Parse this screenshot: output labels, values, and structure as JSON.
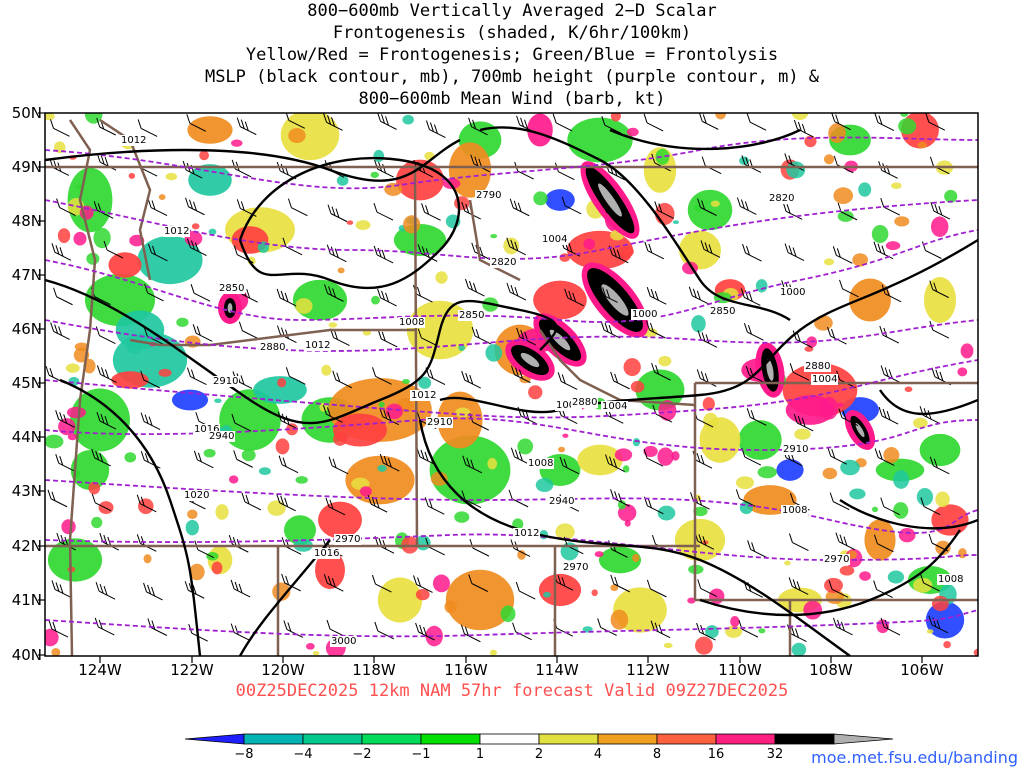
{
  "title": {
    "line1": "800−600mb Vertically Averaged 2−D Scalar",
    "line2": "Frontogenesis (shaded, K/6hr/100km)",
    "line3": "Yellow/Red = Frontogenesis;  Green/Blue = Frontolysis",
    "line4": "MSLP (black contour, mb), 700mb height (purple contour, m) &",
    "line5": "800−600mb Mean Wind (barb, kt)"
  },
  "footer": "00Z25DEC2025 12km NAM 57hr forecast Valid 09Z27DEC2025",
  "url": "moe.met.fsu.edu/banding",
  "lat_labels": [
    "50N",
    "49N",
    "48N",
    "47N",
    "46N",
    "45N",
    "44N",
    "43N",
    "42N",
    "41N",
    "40N"
  ],
  "lon_labels": [
    "124W",
    "122W",
    "120W",
    "118W",
    "116W",
    "114W",
    "112W",
    "110W",
    "108W",
    "106W"
  ],
  "colorbar": {
    "labels": [
      "−8",
      "−4",
      "−2",
      "−1",
      "1",
      "2",
      "4",
      "8",
      "16",
      "32"
    ],
    "colors": [
      "#2020ff",
      "#00b4b4",
      "#00c88c",
      "#00dc5a",
      "#00e000",
      "#ffffff",
      "#e0e040",
      "#f0a020",
      "#ff6040",
      "#ff2080",
      "#000000",
      "#b0b0b0"
    ]
  },
  "colors": {
    "frontogenesis_weak": "#e8e040",
    "frontogenesis_mod": "#f08c20",
    "frontogenesis_strong": "#ff4040",
    "frontogenesis_vstrong": "#ff1a8c",
    "frontogenesis_extreme": "#000000",
    "frontolysis_weak": "#30d830",
    "frontolysis_mod": "#20c8a0",
    "frontolysis_strong": "#2040ff",
    "mslp_contour": "#000000",
    "height_contour": "#a020d0",
    "state_borders": "#806050"
  },
  "contour_labels": {
    "mslp": [
      "1012",
      "1012",
      "1008",
      "1012",
      "1016",
      "1020",
      "1016",
      "1012",
      "1004",
      "1000",
      "1000",
      "1004",
      "1004",
      "1008",
      "1012",
      "1008",
      "1008",
      "1004"
    ],
    "height": [
      "2790",
      "2820",
      "2820",
      "2850",
      "2850",
      "2850",
      "2880",
      "2880",
      "2910",
      "2910",
      "2910",
      "2940",
      "2940",
      "2970",
      "2970",
      "2970",
      "3000",
      "2880"
    ]
  }
}
